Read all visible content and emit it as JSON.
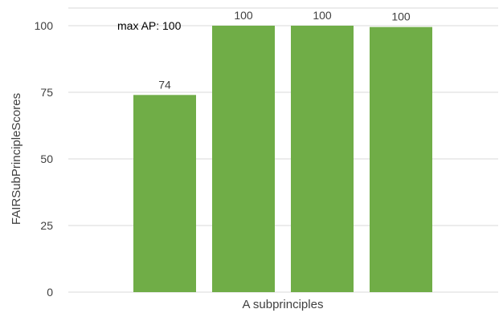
{
  "chart_data": {
    "type": "bar",
    "categories": [
      "",
      "",
      "",
      ""
    ],
    "values": [
      74,
      100,
      100,
      99.5
    ],
    "data_labels": [
      "74",
      "100",
      "100",
      "100"
    ],
    "xlabel": "A subprinciples",
    "ylabel": "FAIRSubPrincipleScores",
    "ylim": [
      0,
      100
    ],
    "yticks": [
      0,
      25,
      50,
      75,
      100
    ],
    "grid": true,
    "legend": "none",
    "bar_color": "#70ad47",
    "grid_color": "#d9d9d9",
    "annotation": "max AP: 100"
  }
}
